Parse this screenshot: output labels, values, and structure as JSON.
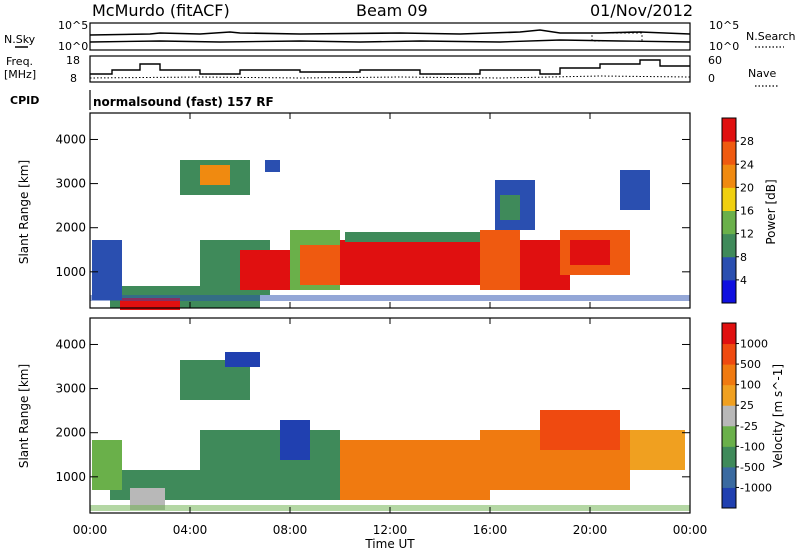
{
  "header": {
    "title_left": "McMurdo (fitACF)",
    "title_center": "Beam 09",
    "title_right": "01/Nov/2012"
  },
  "sky_panel": {
    "left_label": "N.Sky",
    "right_label": "N.Search",
    "ticks_left": [
      "10^5",
      "10^0"
    ],
    "ticks_right": [
      "10^5",
      "10^0"
    ]
  },
  "freq_panel": {
    "left_label_line1": "Freq.",
    "left_label_line2": "[MHz]",
    "right_label": "Nave",
    "ticks_left": [
      "18",
      "8"
    ],
    "ticks_right": [
      "60",
      "0"
    ]
  },
  "cpid": {
    "label": "CPID",
    "text": "normalsound (fast) 157 RF"
  },
  "chart_data": [
    {
      "type": "heatmap",
      "title": "",
      "ylabel": "Slant Range [km]",
      "xlabel": "Time UT",
      "x_ticks": [
        "00:00",
        "04:00",
        "08:00",
        "12:00",
        "16:00",
        "20:00",
        "00:00"
      ],
      "y_ticks": [
        1000,
        2000,
        3000,
        4000
      ],
      "colorbar_label": "Power [dB]",
      "colorbar_ticks": [
        4,
        8,
        12,
        16,
        20,
        24,
        28
      ],
      "colorbar_colors": [
        "#1010e0",
        "#2a4fb0",
        "#3f8a5a",
        "#6ab04a",
        "#f0d010",
        "#f08a10",
        "#ef5a10",
        "#e01010"
      ]
    },
    {
      "type": "heatmap",
      "title": "",
      "ylabel": "Slant Range [km]",
      "xlabel": "Time UT",
      "x_ticks": [
        "00:00",
        "04:00",
        "08:00",
        "12:00",
        "16:00",
        "20:00",
        "00:00"
      ],
      "y_ticks": [
        1000,
        2000,
        3000,
        4000
      ],
      "colorbar_label": "Velocity [m s^-1]",
      "colorbar_ticks": [
        "1000",
        "500",
        "100",
        "25",
        "-25",
        "-100",
        "-500",
        "-1000"
      ],
      "colorbar_colors": [
        "#2040b0",
        "#3a6aa0",
        "#3f8a5a",
        "#6ab04a",
        "#b8b8b8",
        "#f0a020",
        "#f07a10",
        "#ef4a10",
        "#e01010"
      ]
    }
  ]
}
